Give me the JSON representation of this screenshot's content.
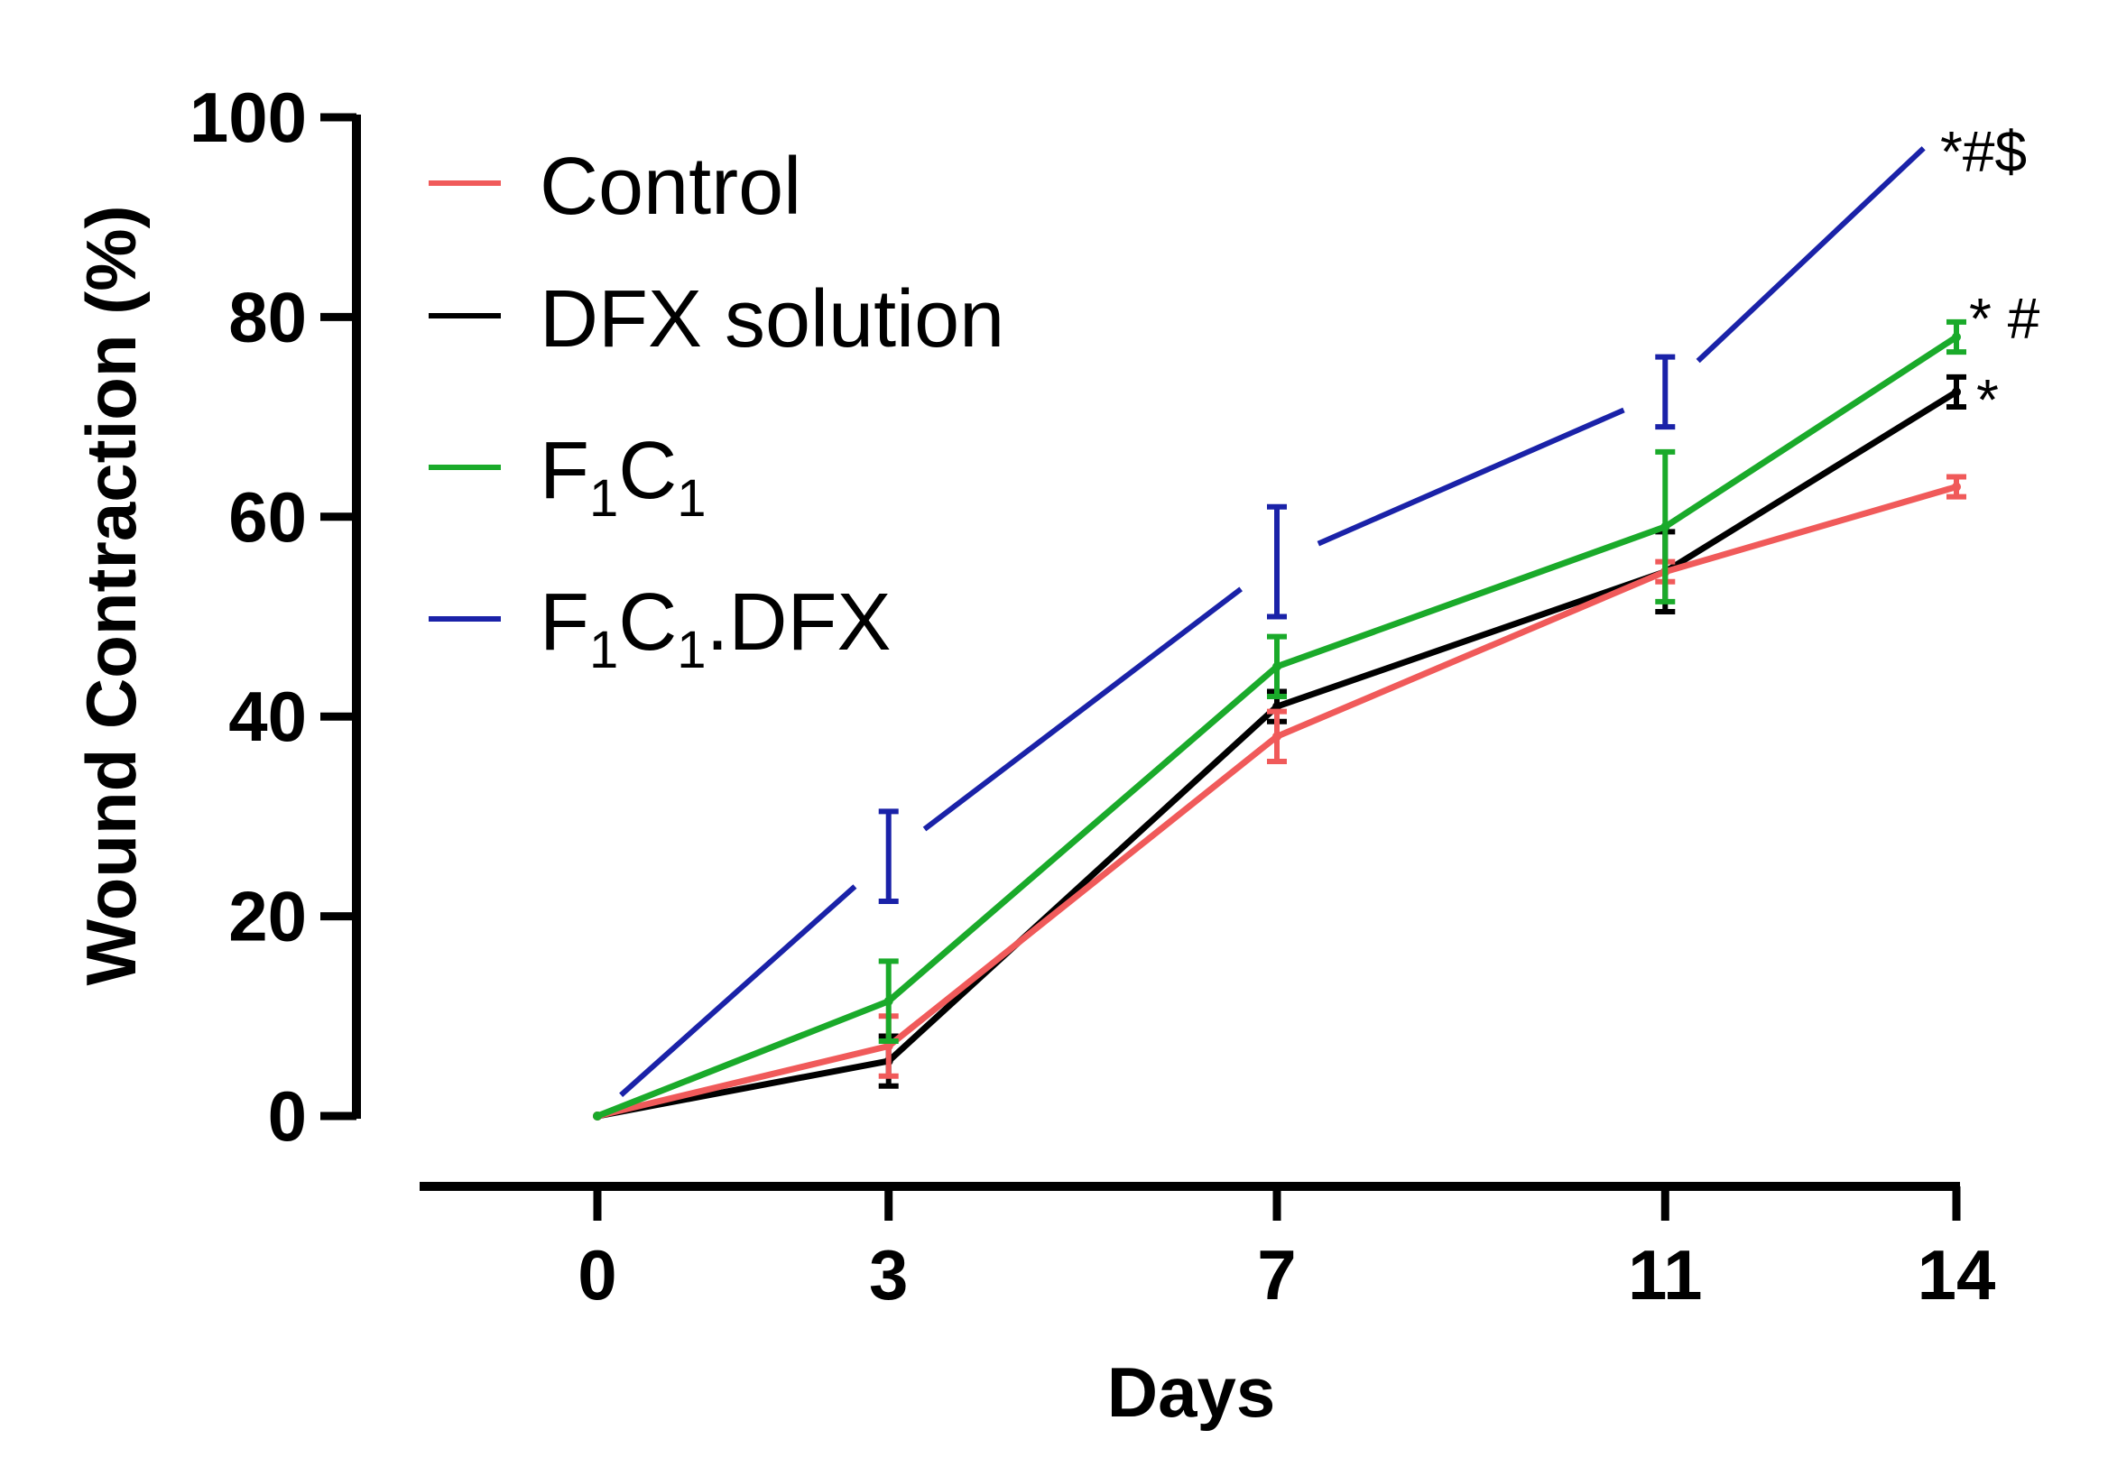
{
  "chart_data": {
    "type": "line",
    "title": "",
    "xlabel": "Days",
    "ylabel": "Wound Contraction (%)",
    "x": [
      0,
      3,
      7,
      11,
      14
    ],
    "x_tick_labels": [
      "0",
      "3",
      "7",
      "11",
      "14"
    ],
    "xlim": [
      -1.5,
      14
    ],
    "ylim": [
      0,
      100
    ],
    "y_ticks": [
      0,
      20,
      40,
      60,
      80,
      100
    ],
    "y_tick_labels": [
      "0",
      "20",
      "40",
      "60",
      "80",
      "100"
    ],
    "grid": false,
    "legend_position": "top-left",
    "series": [
      {
        "name": "Control",
        "label_parts": [
          {
            "text": "Control",
            "sub": ""
          }
        ],
        "color": "#f05a5a",
        "values": [
          0,
          7,
          38,
          54.5,
          63
        ],
        "errors": [
          0,
          3,
          2.5,
          1,
          1
        ]
      },
      {
        "name": "DFX solution",
        "label_parts": [
          {
            "text": "DFX solution",
            "sub": ""
          }
        ],
        "color": "#000000",
        "values": [
          0,
          5.5,
          41,
          54.5,
          72.5
        ],
        "errors": [
          0,
          2.5,
          1.5,
          4,
          1.5
        ]
      },
      {
        "name": "F1C1",
        "label_parts": [
          {
            "text": "F",
            "sub": "1"
          },
          {
            "text": "C",
            "sub": "1"
          }
        ],
        "color": "#1aaa2a",
        "values": [
          0,
          11.5,
          45,
          59,
          78
        ],
        "errors": [
          0,
          4,
          3,
          7.5,
          1.5
        ]
      },
      {
        "name": "F1C1.DFX",
        "label_parts": [
          {
            "text": "F",
            "sub": "1"
          },
          {
            "text": "C",
            "sub": "1"
          },
          {
            "text": ".DFX",
            "sub": ""
          }
        ],
        "color": "#1a22a8",
        "values": [
          0,
          26,
          55.5,
          72.5,
          100
        ],
        "errors": [
          0,
          4.5,
          5.5,
          3.5,
          0
        ]
      }
    ],
    "annotations": [
      {
        "text": "*#$",
        "series": "F1C1.DFX",
        "x": 14,
        "y": 97
      },
      {
        "text": "* #",
        "series": "F1C1",
        "x": 14,
        "y": 79
      },
      {
        "text": "*",
        "series": "DFX solution",
        "x": 14,
        "y": 71
      }
    ]
  }
}
